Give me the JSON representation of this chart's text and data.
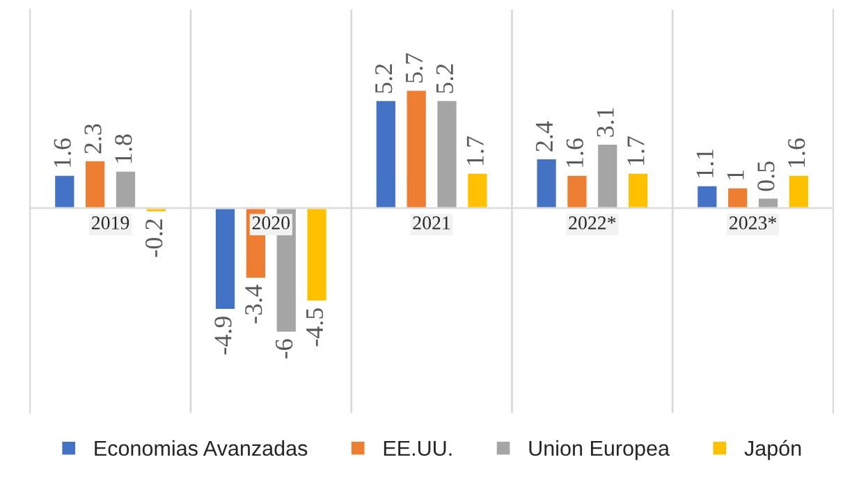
{
  "chart_data": {
    "type": "bar",
    "categories": [
      "2019",
      "2020",
      "2021",
      "2022*",
      "2023*"
    ],
    "series": [
      {
        "name": "Economias Avanzadas",
        "color": "#4472c4",
        "values": [
          1.6,
          -4.9,
          5.2,
          2.4,
          1.1
        ]
      },
      {
        "name": "EE.UU.",
        "color": "#ed7d31",
        "values": [
          2.3,
          -3.4,
          5.7,
          1.6,
          1
        ]
      },
      {
        "name": "Union Europea",
        "color": "#a5a5a5",
        "values": [
          1.8,
          -6,
          5.2,
          3.1,
          0.5
        ]
      },
      {
        "name": "Japón",
        "color": "#ffc000",
        "values": [
          -0.2,
          -4.5,
          1.7,
          1.7,
          1.6
        ]
      }
    ],
    "data_labels": true,
    "legend": "bottom",
    "grid": false
  }
}
